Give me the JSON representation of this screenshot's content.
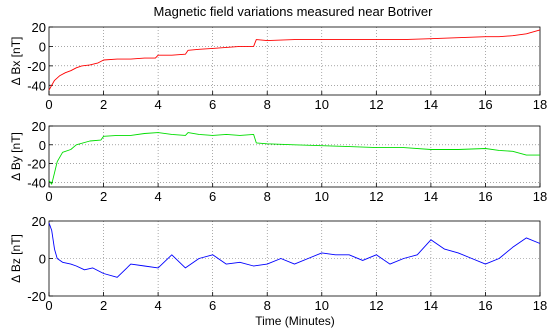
{
  "chart_data": {
    "title": "Magnetic field variations measured near Botriver",
    "xlabel": "Time (Minutes)",
    "x_ticks": [
      "0",
      "2",
      "4",
      "6",
      "8",
      "10",
      "12",
      "14",
      "16",
      "18"
    ],
    "xlim": [
      0,
      18
    ],
    "grid": true,
    "panels": [
      {
        "type": "line",
        "ylabel": "Δ Bx  [nT]",
        "ylim": [
          -50,
          20
        ],
        "y_ticks": [
          "20",
          "0",
          "-20",
          "-40"
        ],
        "color": "#ff0000",
        "series": [
          {
            "x": [
              0,
              0.1,
              0.2,
              0.4,
              0.6,
              0.8,
              1.0,
              1.2,
              1.5,
              1.8,
              2.0,
              2.5,
              3.0,
              3.5,
              3.9,
              4.0,
              4.5,
              5.0,
              5.1,
              5.5,
              6.0,
              6.5,
              7.0,
              7.5,
              7.6,
              8.0,
              9.0,
              10.0,
              11.0,
              12.0,
              13.0,
              14.0,
              15.0,
              16.0,
              16.5,
              17.0,
              17.5,
              18.0
            ],
            "y": [
              -45,
              -40,
              -35,
              -30,
              -27,
              -25,
              -22,
              -20,
              -19,
              -17,
              -14,
              -13,
              -13,
              -12,
              -12,
              -9,
              -9,
              -8,
              -4,
              -3,
              -2,
              -1,
              0,
              0,
              7,
              6,
              7,
              7,
              7,
              7,
              7,
              8,
              9,
              10,
              10,
              11,
              13,
              17
            ]
          }
        ]
      },
      {
        "type": "line",
        "ylabel": "Δ By  [nT]",
        "ylim": [
          -45,
          20
        ],
        "y_ticks": [
          "20",
          "0",
          "-20",
          "-40"
        ],
        "color": "#00dd00",
        "series": [
          {
            "x": [
              0,
              0.1,
              0.2,
              0.3,
              0.5,
              0.8,
              1.0,
              1.5,
              1.9,
              2.0,
              2.5,
              3.0,
              3.5,
              4.0,
              4.5,
              5.0,
              5.1,
              5.5,
              6.0,
              6.5,
              7.0,
              7.5,
              7.6,
              8.0,
              9.0,
              10.0,
              11.0,
              12.0,
              13.0,
              14.0,
              15.0,
              16.0,
              16.5,
              17.0,
              17.5,
              18.0
            ],
            "y": [
              -38,
              -42,
              -30,
              -18,
              -8,
              -5,
              0,
              4,
              5,
              9,
              10,
              10,
              12,
              13,
              11,
              10,
              13,
              11,
              10,
              11,
              10,
              11,
              2,
              1,
              0,
              -1,
              -2,
              -3,
              -3,
              -5,
              -5,
              -4,
              -6,
              -7,
              -11,
              -11
            ]
          }
        ]
      },
      {
        "type": "line",
        "ylabel": "Δ Bz  [nT]",
        "ylim": [
          -20,
          20
        ],
        "y_ticks": [
          "20",
          "0",
          "-20"
        ],
        "color": "#0000ff",
        "series": [
          {
            "x": [
              0,
              0.1,
              0.2,
              0.3,
              0.5,
              0.8,
              1.0,
              1.3,
              1.6,
              2.0,
              2.5,
              3.0,
              3.5,
              4.0,
              4.5,
              5.0,
              5.5,
              6.0,
              6.5,
              7.0,
              7.5,
              8.0,
              8.5,
              9.0,
              9.5,
              10.0,
              10.5,
              11.0,
              11.5,
              12.0,
              12.5,
              13.0,
              13.5,
              14.0,
              14.5,
              15.0,
              15.5,
              16.0,
              16.5,
              17.0,
              17.5,
              18.0
            ],
            "y": [
              19,
              15,
              5,
              0,
              -2,
              -3,
              -4,
              -6,
              -5,
              -8,
              -10,
              -3,
              -4,
              -5,
              2,
              -5,
              0,
              2,
              -3,
              -2,
              -4,
              -3,
              0,
              -3,
              0,
              3,
              2,
              2,
              -1,
              2,
              -3,
              0,
              2,
              10,
              5,
              3,
              0,
              -3,
              0,
              6,
              11,
              8
            ]
          }
        ]
      }
    ]
  }
}
